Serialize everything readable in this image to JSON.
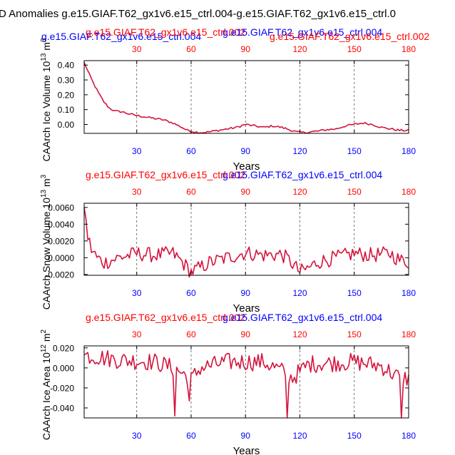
{
  "title": "D Anomalies g.e15.GIAF.T62_gx1v6.e15_ctrl.004-g.e15.GIAF.T62_gx1v6.e15_ctrl.0",
  "colors": {
    "series": "#d4143c",
    "top_axis_labels": "#ff0000",
    "bottom_axis_labels": "#0000ff",
    "case_red": "#ff0000",
    "case_blue": "#0000ff"
  },
  "chart_data": [
    {
      "type": "line",
      "ylabel": "CAArch Ice Volume 10^13 m^3",
      "ylabel_main": "CAArch Ice Volume 10",
      "ylabel_exp": "13",
      "ylabel_unit": " m",
      "ylabel_unit_exp": "3",
      "xlabel": "Years",
      "case_labels": [
        {
          "text": "g.e15.GIAF.T62_gx1v6.e15_ctrl.004",
          "color": "blue"
        },
        {
          "text": "g.e15.GIAF.T62_gx1v6.e15_ctrl.002",
          "color": "red"
        },
        {
          "text": "g.e15.GIAF.T62_gx1v6.e15_ctrl.004",
          "color": "blue"
        },
        {
          "text": "g.e15.GIAF.T62_gx1v6.e15_ctrl.002",
          "color": "red"
        }
      ],
      "xlim": [
        1,
        180
      ],
      "ylim": [
        -0.06,
        0.43
      ],
      "yticks": [
        0.4,
        0.3,
        0.2,
        0.1,
        0.0
      ],
      "ytick_labels": [
        "0.40",
        "0.30",
        "0.20",
        "0.10",
        "0.00"
      ],
      "xticks": [
        30,
        60,
        90,
        120,
        150,
        180
      ],
      "top_tick_labels": [
        "30",
        "60",
        "90",
        "120",
        "150",
        "180"
      ],
      "bottom_tick_labels": [
        "30",
        "60",
        "90",
        "120",
        "150",
        "180"
      ],
      "vlines": [
        30,
        60,
        90,
        120,
        150
      ],
      "anchors": [
        [
          1,
          0.42
        ],
        [
          3,
          0.36
        ],
        [
          6,
          0.28
        ],
        [
          9,
          0.21
        ],
        [
          12,
          0.15
        ],
        [
          15,
          0.11
        ],
        [
          18,
          0.09
        ],
        [
          22,
          0.085
        ],
        [
          26,
          0.07
        ],
        [
          30,
          0.06
        ],
        [
          35,
          0.05
        ],
        [
          40,
          0.04
        ],
        [
          45,
          0.03
        ],
        [
          50,
          0.01
        ],
        [
          55,
          -0.02
        ],
        [
          58,
          -0.04
        ],
        [
          62,
          -0.05
        ],
        [
          66,
          -0.055
        ],
        [
          70,
          -0.05
        ],
        [
          75,
          -0.04
        ],
        [
          80,
          -0.03
        ],
        [
          85,
          -0.02
        ],
        [
          90,
          0.0
        ],
        [
          95,
          -0.01
        ],
        [
          100,
          -0.02
        ],
        [
          105,
          -0.01
        ],
        [
          110,
          -0.02
        ],
        [
          113,
          -0.03
        ],
        [
          118,
          -0.05
        ],
        [
          122,
          -0.055
        ],
        [
          126,
          -0.05
        ],
        [
          130,
          -0.045
        ],
        [
          135,
          -0.035
        ],
        [
          140,
          -0.03
        ],
        [
          145,
          -0.01
        ],
        [
          150,
          0.0
        ],
        [
          155,
          0.01
        ],
        [
          160,
          0.0
        ],
        [
          165,
          -0.02
        ],
        [
          170,
          -0.03
        ],
        [
          175,
          -0.04
        ],
        [
          180,
          -0.04
        ]
      ],
      "noise": 0.007
    },
    {
      "type": "line",
      "ylabel": "CAArch Snow Volume 10^13 m^3",
      "ylabel_main": "CAArch Snow Volume 10",
      "ylabel_exp": "13",
      "ylabel_unit": " m",
      "ylabel_unit_exp": "3",
      "xlabel": "Years",
      "case_labels": [
        {
          "text": "g.e15.GIAF.T62_gx1v6.e15_ctrl.002",
          "color": "red"
        },
        {
          "text": "g.e15.GIAF.T62_gx1v6.e15_ctrl.004",
          "color": "blue"
        }
      ],
      "xlim": [
        1,
        180
      ],
      "ylim": [
        -0.0021,
        0.0065
      ],
      "yticks": [
        0.006,
        0.004,
        0.002,
        0.0,
        -0.002
      ],
      "ytick_labels": [
        "0.0060",
        "0.0040",
        "0.0020",
        "0.0000",
        "-0.0020"
      ],
      "xticks": [
        30,
        60,
        90,
        120,
        150,
        180
      ],
      "top_tick_labels": [
        "30",
        "60",
        "90",
        "120",
        "150",
        "180"
      ],
      "bottom_tick_labels": [
        "30",
        "60",
        "90",
        "120",
        "150",
        "180"
      ],
      "vlines": [
        30,
        60,
        90,
        120,
        150
      ],
      "anchors": [
        [
          1,
          0.006
        ],
        [
          3,
          0.0025
        ],
        [
          5,
          0.001
        ],
        [
          8,
          0.0
        ],
        [
          12,
          -0.0006
        ],
        [
          20,
          0.0
        ],
        [
          30,
          0.0005
        ],
        [
          40,
          0.0003
        ],
        [
          50,
          0.0005
        ],
        [
          55,
          -0.0005
        ],
        [
          60,
          -0.0017
        ],
        [
          65,
          -0.0012
        ],
        [
          70,
          -0.0006
        ],
        [
          80,
          0.0
        ],
        [
          90,
          0.0006
        ],
        [
          100,
          0.0003
        ],
        [
          110,
          0.0004
        ],
        [
          115,
          -0.0005
        ],
        [
          120,
          -0.0017
        ],
        [
          125,
          -0.0012
        ],
        [
          130,
          -0.0005
        ],
        [
          140,
          0.0
        ],
        [
          150,
          0.0005
        ],
        [
          160,
          0.0003
        ],
        [
          170,
          0.0005
        ],
        [
          175,
          -0.0003
        ],
        [
          180,
          -0.0005
        ]
      ],
      "noise": 0.0009
    },
    {
      "type": "line",
      "ylabel": "CAArch Ice Area 10^12 m^2",
      "ylabel_main": "CAArch Ice Area 10",
      "ylabel_exp": "12",
      "ylabel_unit": " m",
      "ylabel_unit_exp": "2",
      "xlabel": "Years",
      "case_labels": [
        {
          "text": "g.e15.GIAF.T62_gx1v6.e15_ctrl.002",
          "color": "red"
        },
        {
          "text": "g.e15.GIAF.T62_gx1v6.e15_ctrl.004",
          "color": "blue"
        }
      ],
      "xlim": [
        1,
        180
      ],
      "ylim": [
        -0.05,
        0.022
      ],
      "yticks": [
        0.02,
        0.0,
        -0.02,
        -0.04
      ],
      "ytick_labels": [
        "0.020",
        "0.000",
        "-0.020",
        "-0.040"
      ],
      "xticks": [
        30,
        60,
        90,
        120,
        150,
        180
      ],
      "top_tick_labels": [
        "30",
        "60",
        "90",
        "120",
        "150",
        "180"
      ],
      "bottom_tick_labels": [
        "30",
        "60",
        "90",
        "120",
        "150",
        "180"
      ],
      "vlines": [
        30,
        60,
        90,
        120,
        150
      ],
      "anchors": [
        [
          1,
          0.013
        ],
        [
          20,
          0.008
        ],
        [
          40,
          0.006
        ],
        [
          50,
          0.0
        ],
        [
          55,
          -0.005
        ],
        [
          60,
          -0.012
        ],
        [
          65,
          0.0
        ],
        [
          80,
          0.006
        ],
        [
          100,
          0.006
        ],
        [
          112,
          -0.005
        ],
        [
          116,
          -0.01
        ],
        [
          125,
          0.004
        ],
        [
          150,
          0.006
        ],
        [
          165,
          0.002
        ],
        [
          175,
          -0.01
        ],
        [
          180,
          -0.01
        ]
      ],
      "noise": 0.009,
      "spikes": [
        [
          51,
          -0.048
        ],
        [
          59,
          -0.033
        ],
        [
          113,
          -0.05
        ],
        [
          176,
          -0.05
        ]
      ]
    }
  ]
}
